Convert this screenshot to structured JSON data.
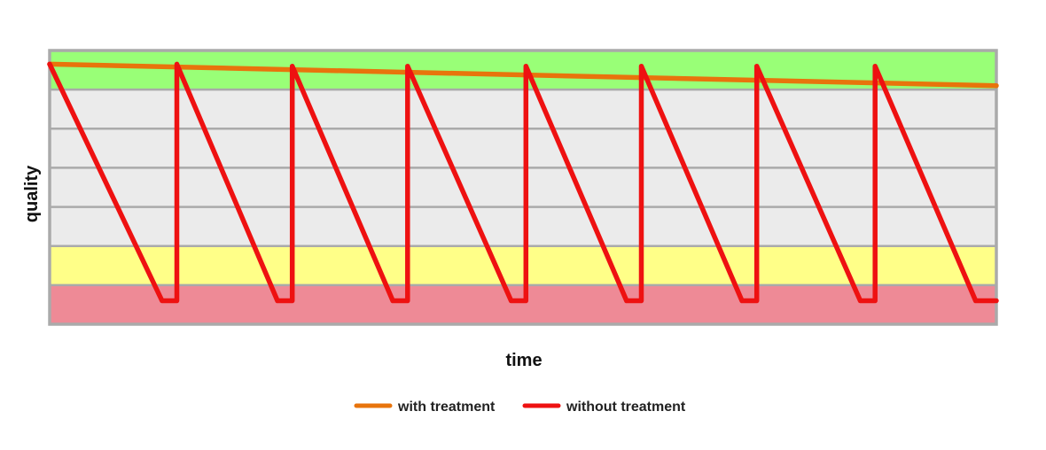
{
  "chart_data": {
    "type": "line",
    "xlabel": "time",
    "ylabel": "quality",
    "xlim": [
      0,
      16
    ],
    "ylim": [
      0,
      7
    ],
    "grid": true,
    "legend_position": "bottom",
    "bands": [
      {
        "from": 0,
        "to": 1,
        "color": "#ee8a96"
      },
      {
        "from": 1,
        "to": 2,
        "color": "#ffff88"
      },
      {
        "from": 2,
        "to": 6,
        "color": "#ebebeb"
      },
      {
        "from": 6,
        "to": 7,
        "color": "#99ff77"
      }
    ],
    "grid_lines": [
      1,
      2,
      3,
      4,
      5,
      6
    ],
    "series": [
      {
        "name": "with treatment",
        "color": "#e8740c",
        "x": [
          0,
          16
        ],
        "y": [
          6.65,
          6.1
        ]
      },
      {
        "name": "without treatment",
        "color": "#ee1111",
        "x": [
          0,
          1.9,
          2.15,
          2.15,
          3.85,
          4.1,
          4.1,
          5.8,
          6.05,
          6.05,
          7.8,
          8.05,
          8.05,
          9.75,
          10.0,
          10.0,
          11.7,
          11.95,
          11.95,
          13.7,
          13.95,
          13.95,
          15.65,
          16
        ],
        "y": [
          6.65,
          0.6,
          0.6,
          6.65,
          0.6,
          0.6,
          6.6,
          0.6,
          0.6,
          6.6,
          0.6,
          0.6,
          6.6,
          0.6,
          0.6,
          6.6,
          0.6,
          0.6,
          6.6,
          0.6,
          0.6,
          6.6,
          0.6,
          0.6
        ]
      }
    ],
    "frame_color": "#aaaaaa",
    "grid_color": "#aaaaaa"
  }
}
